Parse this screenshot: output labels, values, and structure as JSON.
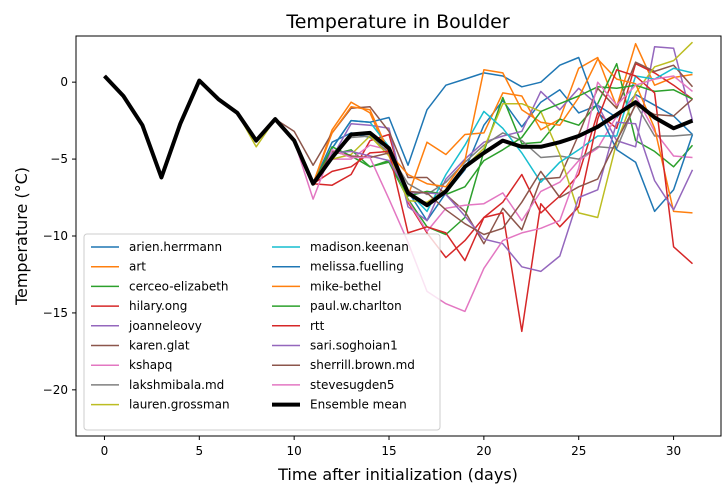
{
  "chart_data": {
    "type": "line",
    "title": "Temperature in Boulder",
    "xlabel": "Time after initialization (days)",
    "ylabel": "Temperature (°C)",
    "xlim": [
      -1.5,
      32.5
    ],
    "ylim": [
      -23,
      3
    ],
    "xticks": [
      0,
      5,
      10,
      15,
      20,
      25,
      30
    ],
    "yticks": [
      -20,
      -15,
      -10,
      -5,
      0
    ],
    "x": [
      0,
      1,
      2,
      3,
      4,
      5,
      6,
      7,
      8,
      9,
      10,
      11,
      12,
      13,
      14,
      15,
      16,
      17,
      18,
      19,
      20,
      21,
      22,
      23,
      24,
      25,
      26,
      27,
      28,
      29,
      30,
      31
    ],
    "legend_location": "lower-left",
    "grid": false,
    "series": [
      {
        "name": "arien.herrmann",
        "color": "#1f77b4",
        "values": [
          0.4,
          -0.9,
          -2.8,
          -6.2,
          -2.7,
          0.1,
          -1.1,
          -2,
          -3.8,
          -2.4,
          -3.8,
          -6.6,
          -3.9,
          -3.3,
          -3.6,
          -4.3,
          -7.1,
          -9,
          -7.2,
          -5.7,
          -2.8,
          -1.2,
          -2.9,
          -1.3,
          -0.5,
          -2,
          -1.5,
          -2.3,
          -0.8,
          -1.5,
          -2.2,
          -3.4
        ]
      },
      {
        "name": "art",
        "color": "#ff7f0e",
        "values": [
          0.4,
          -0.9,
          -2.8,
          -6.2,
          -2.7,
          0.1,
          -1.1,
          -2,
          -3.8,
          -2.4,
          -3.8,
          -6.6,
          -3.1,
          -1.3,
          -2,
          -4.8,
          -7.4,
          -3.9,
          -4.7,
          -3.4,
          -3.3,
          -0.7,
          -0.9,
          -3.1,
          -2.4,
          0.9,
          1.6,
          -1.6,
          2.5,
          -0.2,
          0.3,
          0.5
        ]
      },
      {
        "name": "cerceo-elizabeth",
        "color": "#2ca02c",
        "values": [
          0.4,
          -0.9,
          -2.8,
          -6.2,
          -2.7,
          0.1,
          -1.1,
          -2,
          -3.8,
          -2.4,
          -3.8,
          -6.6,
          -4.7,
          -4.4,
          -5.5,
          -5.2,
          -7.6,
          -9.4,
          -9.9,
          -8.8,
          -4.5,
          -1,
          -4,
          -3.9,
          -2.4,
          -2.8,
          -1.4,
          1.2,
          -3.8,
          -4.5,
          -5.5,
          -4.1
        ]
      },
      {
        "name": "hilary.ong",
        "color": "#d62728",
        "values": [
          0.4,
          -0.9,
          -2.8,
          -6.2,
          -2.7,
          0.1,
          -1.1,
          -2,
          -3.8,
          -2.4,
          -3.8,
          -6.6,
          -6.7,
          -6,
          -3.8,
          -3.4,
          -7.8,
          -9.8,
          -11.4,
          -10.3,
          -8.8,
          -7.8,
          -6,
          -8.5,
          -7.4,
          -6,
          -2,
          -3,
          1.2,
          0.6,
          -0.2,
          -1.1
        ]
      },
      {
        "name": "joanneleovy",
        "color": "#9467bd",
        "values": [
          0.4,
          -0.9,
          -2.8,
          -6.2,
          -2.7,
          0.1,
          -1.1,
          -2,
          -3.8,
          -2.4,
          -3.8,
          -6.6,
          -4.9,
          -2.7,
          -2.8,
          -3,
          -8.1,
          -9,
          -6.3,
          -5,
          -3.9,
          -3.5,
          -3.2,
          -0.6,
          -1.8,
          -0.4,
          -1.5,
          -3.8,
          -4.2,
          2.3,
          2.2,
          -2.5
        ]
      },
      {
        "name": "karen.glat",
        "color": "#8c564b",
        "values": [
          0.4,
          -0.9,
          -2.8,
          -6.2,
          -2.7,
          0.1,
          -1.1,
          -2,
          -3.8,
          -2.4,
          -3.2,
          -5.4,
          -3.3,
          -1.7,
          -1.6,
          -3.2,
          -6.2,
          -6.2,
          -7.3,
          -8.4,
          -10.5,
          -8.2,
          -9.6,
          -6.3,
          -6.2,
          -3.4,
          -0.4,
          -1.7,
          1.3,
          0.7,
          1.1,
          -0.3
        ]
      },
      {
        "name": "kshapq",
        "color": "#e377c2",
        "values": [
          0.4,
          -0.9,
          -2.8,
          -6.2,
          -2.7,
          0.1,
          -1.1,
          -2,
          -3.8,
          -2.4,
          -3.8,
          -6.6,
          -5,
          -5,
          -4.1,
          -4.4,
          -7.7,
          -9.7,
          -8.2,
          -8,
          -7.9,
          -7.2,
          -9,
          -7.1,
          -6.5,
          -5.1,
          -4.3,
          -2.2,
          -0.9,
          -3.2,
          -4.8,
          -4.9
        ]
      },
      {
        "name": "lakshmibala.md",
        "color": "#7f7f7f",
        "values": [
          0.4,
          -0.9,
          -2.8,
          -6.2,
          -2.7,
          0.1,
          -1.1,
          -2,
          -3.8,
          -2.4,
          -3.8,
          -6.6,
          -4.6,
          -3.6,
          -3.5,
          -4.6,
          -6.6,
          -7.3,
          -6.5,
          -5.2,
          -4.1,
          -3.3,
          -3.8,
          -4.9,
          -4.8,
          -5,
          -4.2,
          -4.3,
          -1.4,
          -3.5,
          -3.5,
          -3.4
        ]
      },
      {
        "name": "lauren.grossman",
        "color": "#bcbd22",
        "values": [
          0.4,
          -0.9,
          -2.8,
          -6.2,
          -2.7,
          0.1,
          -1.1,
          -2,
          -4.2,
          -2.4,
          -3.8,
          -6.6,
          -5,
          -4.7,
          -3.5,
          -4.8,
          -7.7,
          -7.8,
          -7,
          -5.5,
          -4.3,
          -1.4,
          -1.4,
          -1.9,
          -4.7,
          -8.5,
          -8.8,
          -3.9,
          -0.7,
          1,
          1.4,
          2.6
        ]
      },
      {
        "name": "madison.keenan",
        "color": "#17becf",
        "values": [
          0.4,
          -0.9,
          -2.8,
          -6.2,
          -2.7,
          0.1,
          -1.1,
          -2,
          -3.8,
          -2.4,
          -3.8,
          -6.6,
          -4.3,
          -2.5,
          -2.6,
          -4.2,
          -7.1,
          -8.4,
          -6,
          -4.1,
          -1.9,
          -3,
          -4.6,
          -6.5,
          -5.2,
          -4.4,
          -3.5,
          -3.5,
          0.4,
          0.2,
          0.9,
          0.6
        ]
      },
      {
        "name": "melissa.fuelling",
        "color": "#1f77b4",
        "values": [
          0.4,
          -0.9,
          -2.8,
          -6.2,
          -2.7,
          0.1,
          -1.1,
          -2,
          -3.8,
          -2.4,
          -3.8,
          -6.6,
          -4.3,
          -2.5,
          -2.6,
          -2.3,
          -5.4,
          -1.8,
          -0.2,
          0.2,
          0.6,
          0.4,
          -0.3,
          0,
          1.1,
          1.6,
          -1.8,
          -4.4,
          -5.2,
          -8.4,
          -7,
          -3.4
        ]
      },
      {
        "name": "mike-bethel",
        "color": "#ff7f0e",
        "values": [
          0.4,
          -0.9,
          -2.8,
          -6.2,
          -2.7,
          0.1,
          -1.1,
          -2,
          -3.8,
          -2.4,
          -3.8,
          -6.6,
          -3.3,
          -1.6,
          -1.8,
          -4.6,
          -6,
          -6.6,
          -6.8,
          -5.1,
          0.8,
          0.6,
          -1.8,
          -2.6,
          -2.8,
          -1,
          1.5,
          0.2,
          -0.1,
          -3,
          -8.4,
          -8.5
        ]
      },
      {
        "name": "paul.w.charlton",
        "color": "#2ca02c",
        "values": [
          0.4,
          -0.9,
          -2.8,
          -6.2,
          -2.7,
          0.1,
          -1.1,
          -2,
          -3.8,
          -2.4,
          -3.8,
          -6.6,
          -4.2,
          -4.8,
          -5.5,
          -5.1,
          -7.4,
          -7.1,
          -7.3,
          -6.8,
          -5.1,
          -4.4,
          -3.6,
          -1.9,
          -1.4,
          -0.9,
          -0.3,
          -0.4,
          -0.2,
          -0.6,
          -0.5,
          -1.1
        ]
      },
      {
        "name": "rtt",
        "color": "#d62728",
        "values": [
          0.4,
          -0.9,
          -2.8,
          -6.2,
          -2.7,
          0.1,
          -1.1,
          -2,
          -3.8,
          -2.4,
          -3.8,
          -6.6,
          -5.8,
          -5.5,
          -4.6,
          -4.5,
          -9.8,
          -9.4,
          -9.8,
          -11.6,
          -8.8,
          -8.5,
          -16.2,
          -7.9,
          -9.4,
          -8.1,
          -2.4,
          0.8,
          0.4,
          -0.7,
          -10.7,
          -11.8
        ]
      },
      {
        "name": "sari.soghoian1",
        "color": "#9467bd",
        "values": [
          0.4,
          -0.9,
          -2.8,
          -6.2,
          -2.7,
          0.1,
          -1.1,
          -2,
          -3.8,
          -2.4,
          -3.8,
          -6.6,
          -4.6,
          -4.5,
          -4.8,
          -5.1,
          -7.2,
          -7.2,
          -7.3,
          -8.7,
          -10.2,
          -10.5,
          -12,
          -12.3,
          -11.3,
          -7.5,
          -7,
          -2.6,
          -2.7,
          -6.4,
          -8.3,
          -5.7
        ]
      },
      {
        "name": "sherrill.brown.md",
        "color": "#8c564b",
        "values": [
          0.4,
          -0.9,
          -2.8,
          -6.2,
          -2.7,
          0.1,
          -1.1,
          -2,
          -3.8,
          -2.4,
          -3.8,
          -6.6,
          -4.5,
          -4.8,
          -4.9,
          -4.6,
          -7.1,
          -7.2,
          -8.3,
          -9.2,
          -9.9,
          -9.5,
          -7.8,
          -5.8,
          -7.5,
          -6.8,
          -6.3,
          -3.8,
          -1.5,
          -2.1,
          -2.2,
          -1.1
        ]
      },
      {
        "name": "stevesugden5",
        "color": "#e377c2",
        "values": [
          0.4,
          -0.9,
          -2.8,
          -6.2,
          -2.7,
          0.1,
          -1.1,
          -2,
          -3.8,
          -2.4,
          -3.8,
          -7.6,
          -4.4,
          -4.9,
          -4.9,
          -7.6,
          -10.4,
          -13.6,
          -14.4,
          -14.9,
          -12.1,
          -10.3,
          -9.8,
          -9.5,
          -9,
          -5.6,
          0,
          -1.5,
          -0.2,
          0.2,
          0.4,
          -0.6
        ]
      }
    ],
    "mean": {
      "name": "Ensemble mean",
      "color": "#000000",
      "values": [
        0.4,
        -0.9,
        -2.8,
        -6.2,
        -2.7,
        0.1,
        -1.1,
        -2,
        -3.8,
        -2.4,
        -3.8,
        -6.6,
        -4.9,
        -3.4,
        -3.3,
        -4.3,
        -7.2,
        -8,
        -7.1,
        -5.5,
        -4.6,
        -3.8,
        -4.2,
        -4.2,
        -3.9,
        -3.5,
        -2.9,
        -2.1,
        -1.3,
        -2.3,
        -3,
        -2.5
      ]
    }
  }
}
